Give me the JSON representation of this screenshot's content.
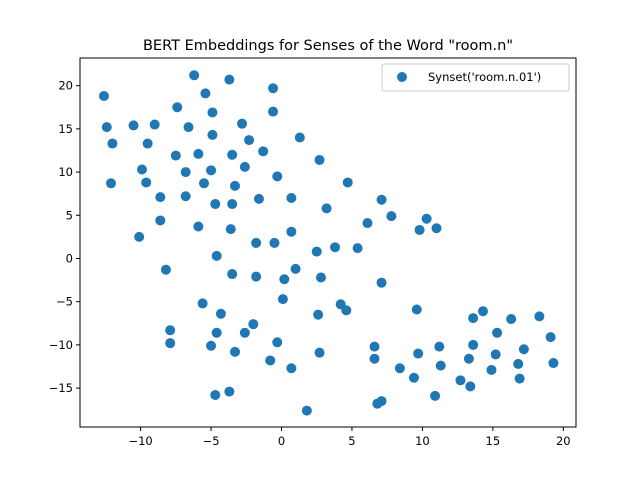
{
  "chart_data": {
    "type": "scatter",
    "title": "BERT Embeddings for Senses of the Word \"room.n\"",
    "xlabel": "",
    "ylabel": "",
    "xlim": [
      -14.3,
      20.9
    ],
    "ylim": [
      -19.5,
      23.2
    ],
    "xticks": [
      -10,
      -5,
      0,
      5,
      10,
      15,
      20
    ],
    "xtick_labels": [
      "−10",
      "−5",
      "0",
      "5",
      "10",
      "15",
      "20"
    ],
    "yticks": [
      -15,
      -10,
      -5,
      0,
      5,
      10,
      15,
      20
    ],
    "ytick_labels": [
      "−15",
      "−10",
      "−5",
      "0",
      "5",
      "10",
      "15",
      "20"
    ],
    "grid": false,
    "legend_position": "upper right",
    "series": [
      {
        "name": "Synset('room.n.01')",
        "color": "#1f77b4",
        "points": [
          [
            -12.6,
            18.8
          ],
          [
            -12.4,
            15.2
          ],
          [
            -12.0,
            13.3
          ],
          [
            -12.1,
            8.7
          ],
          [
            -10.5,
            15.4
          ],
          [
            -9.0,
            15.5
          ],
          [
            -9.5,
            13.3
          ],
          [
            -9.9,
            10.3
          ],
          [
            -9.6,
            8.8
          ],
          [
            -8.6,
            7.1
          ],
          [
            -8.6,
            4.4
          ],
          [
            -10.1,
            2.5
          ],
          [
            -8.2,
            -1.3
          ],
          [
            -7.9,
            -8.3
          ],
          [
            -7.9,
            -9.8
          ],
          [
            -6.2,
            21.2
          ],
          [
            -7.4,
            17.5
          ],
          [
            -6.6,
            15.2
          ],
          [
            -7.5,
            11.9
          ],
          [
            -6.8,
            10.0
          ],
          [
            -6.8,
            7.2
          ],
          [
            -5.9,
            12.1
          ],
          [
            -5.5,
            8.7
          ],
          [
            -5.9,
            3.7
          ],
          [
            -5.4,
            19.1
          ],
          [
            -4.9,
            16.9
          ],
          [
            -4.9,
            14.3
          ],
          [
            -5.0,
            10.2
          ],
          [
            -4.7,
            6.3
          ],
          [
            -4.6,
            0.3
          ],
          [
            -5.6,
            -5.2
          ],
          [
            -4.3,
            -6.4
          ],
          [
            -4.6,
            -8.6
          ],
          [
            -5.0,
            -10.1
          ],
          [
            -4.7,
            -15.8
          ],
          [
            -3.7,
            20.7
          ],
          [
            -3.5,
            12.0
          ],
          [
            -3.3,
            8.4
          ],
          [
            -3.5,
            6.3
          ],
          [
            -3.6,
            3.4
          ],
          [
            -3.5,
            -1.8
          ],
          [
            -3.3,
            -10.8
          ],
          [
            -3.7,
            -15.4
          ],
          [
            -2.8,
            15.6
          ],
          [
            -2.6,
            10.6
          ],
          [
            -2.3,
            13.7
          ],
          [
            -1.6,
            6.9
          ],
          [
            -1.8,
            1.8
          ],
          [
            -1.8,
            -2.1
          ],
          [
            -2.6,
            -8.6
          ],
          [
            -2.0,
            -7.6
          ],
          [
            -1.3,
            12.4
          ],
          [
            -0.6,
            19.7
          ],
          [
            -0.6,
            17.0
          ],
          [
            -0.3,
            9.5
          ],
          [
            -0.5,
            1.8
          ],
          [
            -0.8,
            -11.8
          ],
          [
            -0.3,
            -9.7
          ],
          [
            0.1,
            -4.7
          ],
          [
            0.2,
            -2.4
          ],
          [
            0.7,
            3.1
          ],
          [
            0.7,
            7.0
          ],
          [
            0.7,
            -12.7
          ],
          [
            1.3,
            14.0
          ],
          [
            1.0,
            -1.2
          ],
          [
            1.8,
            -17.6
          ],
          [
            2.7,
            11.4
          ],
          [
            3.2,
            5.8
          ],
          [
            2.5,
            0.8
          ],
          [
            2.8,
            -2.2
          ],
          [
            2.6,
            -6.5
          ],
          [
            2.7,
            -10.9
          ],
          [
            3.8,
            1.3
          ],
          [
            4.2,
            -5.3
          ],
          [
            4.6,
            -6.0
          ],
          [
            4.7,
            8.8
          ],
          [
            5.4,
            1.2
          ],
          [
            6.1,
            4.1
          ],
          [
            6.6,
            -10.2
          ],
          [
            6.6,
            -11.6
          ],
          [
            6.8,
            -16.8
          ],
          [
            7.1,
            -16.5
          ],
          [
            7.1,
            6.8
          ],
          [
            7.1,
            -2.8
          ],
          [
            7.8,
            4.9
          ],
          [
            8.4,
            -12.7
          ],
          [
            9.4,
            -13.8
          ],
          [
            9.6,
            -5.9
          ],
          [
            9.7,
            -11.0
          ],
          [
            9.8,
            3.3
          ],
          [
            10.3,
            4.6
          ],
          [
            11.0,
            3.5
          ],
          [
            10.9,
            -15.9
          ],
          [
            11.2,
            -10.2
          ],
          [
            11.3,
            -12.4
          ],
          [
            12.7,
            -14.1
          ],
          [
            13.3,
            -11.6
          ],
          [
            13.4,
            -14.8
          ],
          [
            13.6,
            -6.9
          ],
          [
            13.6,
            -10.0
          ],
          [
            14.3,
            -6.1
          ],
          [
            14.9,
            -12.9
          ],
          [
            15.2,
            -11.1
          ],
          [
            15.3,
            -8.6
          ],
          [
            16.3,
            -7.0
          ],
          [
            16.8,
            -12.2
          ],
          [
            16.9,
            -13.9
          ],
          [
            17.2,
            -10.5
          ],
          [
            18.3,
            -6.7
          ],
          [
            19.1,
            -9.1
          ],
          [
            19.3,
            -12.1
          ]
        ]
      }
    ]
  }
}
